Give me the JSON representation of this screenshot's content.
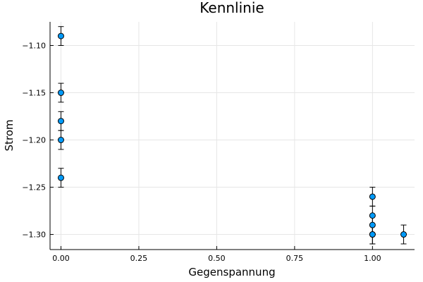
{
  "chart_data": {
    "type": "scatter",
    "title": "Kennlinie",
    "xlabel": "Gegenspannung",
    "ylabel": "Strom",
    "xlim": [
      -0.035,
      1.135
    ],
    "ylim": [
      -1.316,
      -1.075
    ],
    "xticks": [
      0.0,
      0.25,
      0.5,
      0.75,
      1.0
    ],
    "xtick_labels": [
      "0.00",
      "0.25",
      "0.50",
      "0.75",
      "1.00"
    ],
    "yticks": [
      -1.1,
      -1.15,
      -1.2,
      -1.25,
      -1.3
    ],
    "ytick_labels": [
      "−1.10",
      "−1.15",
      "−1.20",
      "−1.25",
      "−1.30"
    ],
    "grid": true,
    "legend": "none",
    "marker_color": "#009af9",
    "series": [
      {
        "x": [
          0.0,
          0.0,
          0.0,
          0.0,
          0.0,
          1.0,
          1.0,
          1.0,
          1.0,
          1.0,
          1.1
        ],
        "y": [
          -1.09,
          -1.15,
          -1.18,
          -1.2,
          -1.24,
          -1.26,
          -1.28,
          -1.29,
          -1.3,
          -1.3,
          -1.3
        ],
        "yerr": [
          0.01,
          0.01,
          0.01,
          0.01,
          0.01,
          0.01,
          0.01,
          0.01,
          0.01,
          0.01,
          0.01
        ]
      }
    ]
  }
}
